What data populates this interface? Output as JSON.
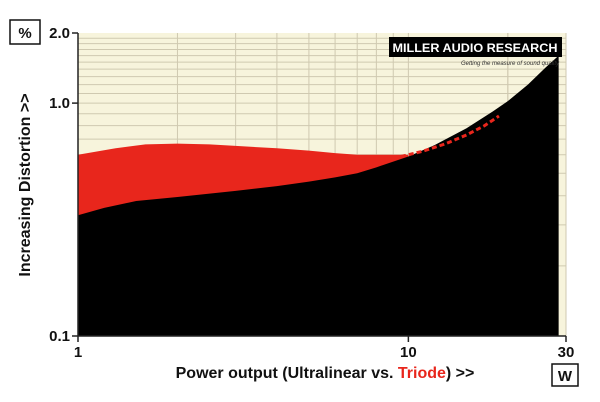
{
  "chart_data": {
    "type": "area",
    "xscale": "log",
    "yscale": "log",
    "xlim": [
      1,
      30
    ],
    "ylim": [
      0.1,
      2.0
    ],
    "grid": true,
    "background_color": "#f7f4dc",
    "grid_color": "#cfc9b0",
    "xlabel_prefix": "Power output (Ultralinear vs. ",
    "xlabel_highlight": "Triode",
    "xlabel_suffix": ") >>",
    "ylabel": "Increasing Distortion >>",
    "y_unit": "%",
    "x_unit": "W",
    "x_tick_labels": [
      {
        "value": 1,
        "label": "1"
      },
      {
        "value": 10,
        "label": "10"
      },
      {
        "value": 30,
        "label": "30"
      }
    ],
    "y_tick_labels": [
      {
        "value": 0.1,
        "label": "0.1"
      },
      {
        "value": 1.0,
        "label": "1.0"
      },
      {
        "value": 2.0,
        "label": "2.0"
      }
    ],
    "logo": {
      "title": "MILLER AUDIO RESEARCH",
      "subtitle": "Getting the measure of sound quality"
    },
    "series": [
      {
        "color": "#e8261c",
        "points": [
          [
            1,
            0.6
          ],
          [
            1.3,
            0.64
          ],
          [
            1.6,
            0.665
          ],
          [
            2,
            0.67
          ],
          [
            2.5,
            0.665
          ],
          [
            3,
            0.655
          ],
          [
            4,
            0.64
          ],
          [
            5,
            0.625
          ],
          [
            6,
            0.61
          ],
          [
            7,
            0.6
          ],
          [
            8,
            0.6
          ],
          [
            9,
            0.6
          ],
          [
            10,
            0.6
          ]
        ]
      },
      {
        "color": "#e8261c",
        "style": "dashed",
        "points": [
          [
            9.5,
            0.59
          ],
          [
            11,
            0.62
          ],
          [
            13,
            0.67
          ],
          [
            15,
            0.73
          ],
          [
            17,
            0.8
          ],
          [
            18.8,
            0.88
          ]
        ]
      },
      {
        "color": "#000000",
        "points": [
          [
            1,
            0.33
          ],
          [
            1.2,
            0.355
          ],
          [
            1.5,
            0.38
          ],
          [
            2,
            0.395
          ],
          [
            3,
            0.42
          ],
          [
            4,
            0.44
          ],
          [
            5,
            0.46
          ],
          [
            6,
            0.48
          ],
          [
            7,
            0.5
          ],
          [
            8,
            0.53
          ],
          [
            10,
            0.59
          ],
          [
            12,
            0.66
          ],
          [
            15,
            0.78
          ],
          [
            18,
            0.92
          ],
          [
            20,
            1.02
          ],
          [
            23,
            1.2
          ],
          [
            26,
            1.42
          ],
          [
            28.5,
            1.6
          ]
        ]
      }
    ]
  }
}
